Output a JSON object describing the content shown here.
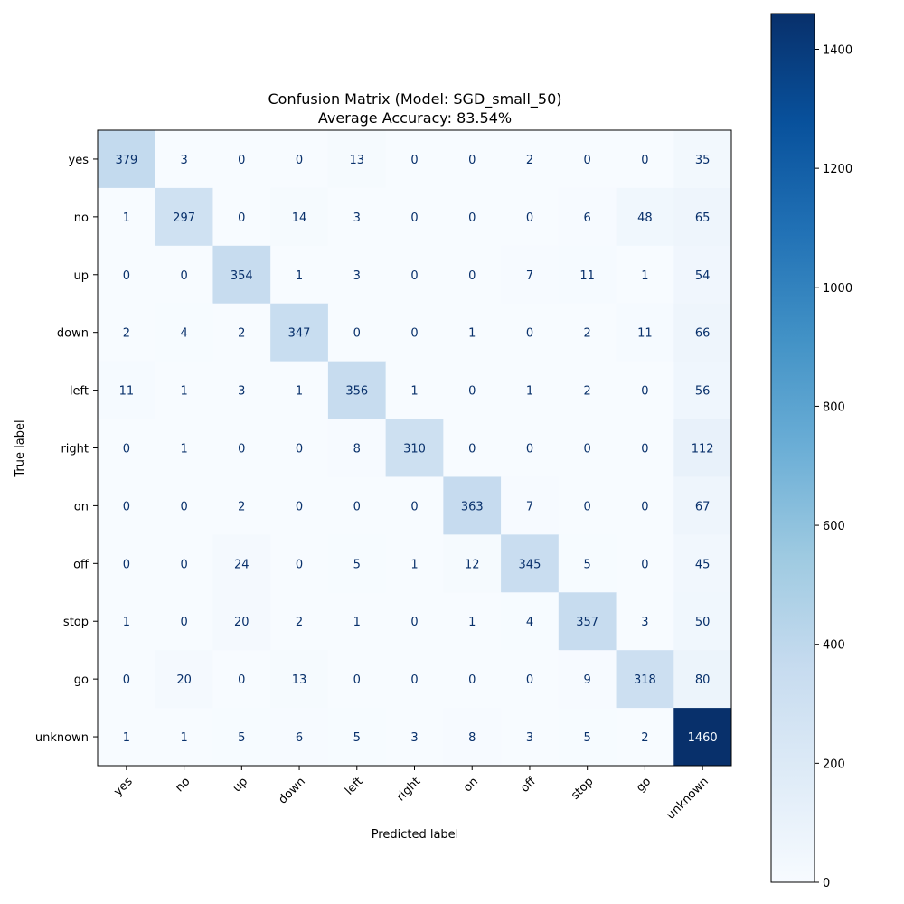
{
  "chart_data": {
    "type": "heatmap",
    "title": "Confusion Matrix (Model: SGD_small_50)",
    "subtitle": "Average Accuracy: 83.54%",
    "xlabel": "Predicted label",
    "ylabel": "True label",
    "x_categories": [
      "yes",
      "no",
      "up",
      "down",
      "left",
      "right",
      "on",
      "off",
      "stop",
      "go",
      "unknown"
    ],
    "y_categories": [
      "yes",
      "no",
      "up",
      "down",
      "left",
      "right",
      "on",
      "off",
      "stop",
      "go",
      "unknown"
    ],
    "matrix": [
      [
        379,
        3,
        0,
        0,
        13,
        0,
        0,
        2,
        0,
        0,
        35
      ],
      [
        1,
        297,
        0,
        14,
        3,
        0,
        0,
        0,
        6,
        48,
        65
      ],
      [
        0,
        0,
        354,
        1,
        3,
        0,
        0,
        7,
        11,
        1,
        54
      ],
      [
        2,
        4,
        2,
        347,
        0,
        0,
        1,
        0,
        2,
        11,
        66
      ],
      [
        11,
        1,
        3,
        1,
        356,
        1,
        0,
        1,
        2,
        0,
        56
      ],
      [
        0,
        1,
        0,
        0,
        8,
        310,
        0,
        0,
        0,
        0,
        112
      ],
      [
        0,
        0,
        2,
        0,
        0,
        0,
        363,
        7,
        0,
        0,
        67
      ],
      [
        0,
        0,
        24,
        0,
        5,
        1,
        12,
        345,
        5,
        0,
        45
      ],
      [
        1,
        0,
        20,
        2,
        1,
        0,
        1,
        4,
        357,
        3,
        50
      ],
      [
        0,
        20,
        0,
        13,
        0,
        0,
        0,
        0,
        9,
        318,
        80
      ],
      [
        1,
        1,
        5,
        6,
        5,
        3,
        8,
        3,
        5,
        2,
        1460
      ]
    ],
    "colormap": "Blues",
    "colorbar": {
      "range": [
        0,
        1460
      ],
      "ticks": [
        0,
        200,
        400,
        600,
        800,
        1000,
        1200,
        1400
      ],
      "placement": "right"
    },
    "grid": false
  }
}
